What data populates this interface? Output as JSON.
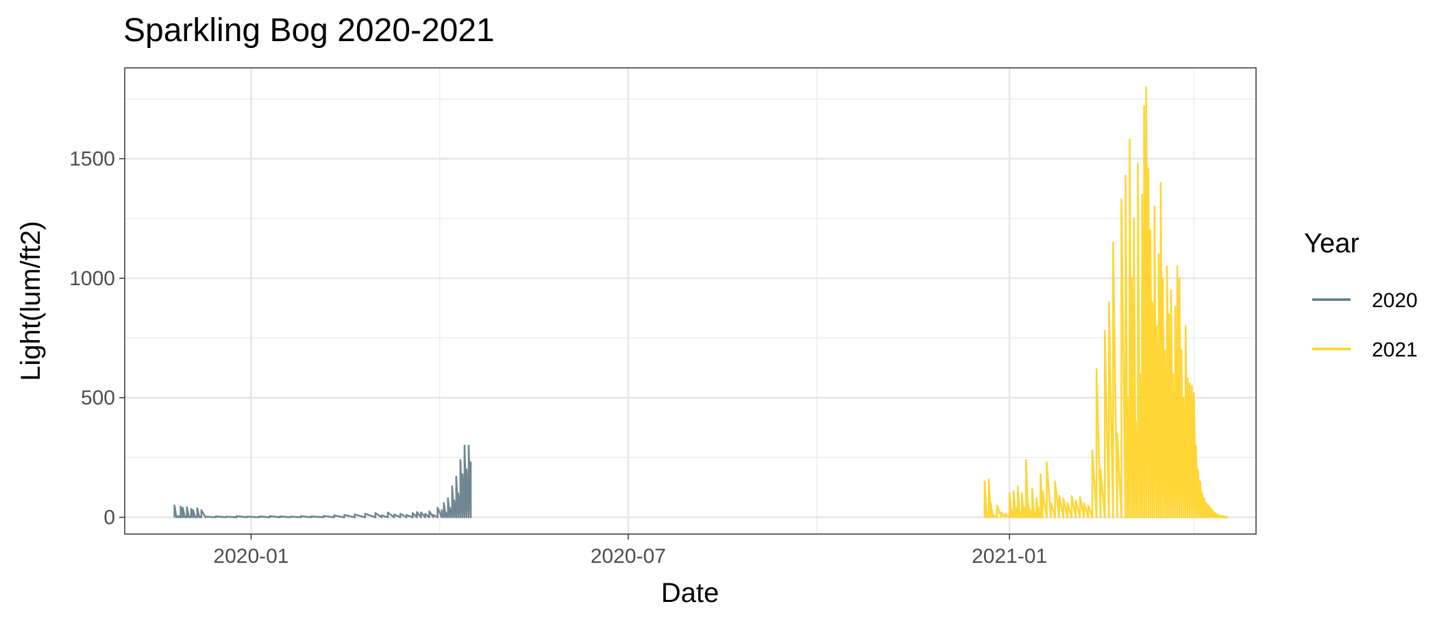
{
  "chart_data": {
    "type": "line",
    "title": "Sparkling Bog 2020-2021",
    "xlabel": "Date",
    "ylabel": "Light(lum/ft2)",
    "x_type": "date",
    "xlim": [
      "2019-11-01",
      "2021-04-30"
    ],
    "ylim": [
      -70,
      1880
    ],
    "x_ticks": [
      {
        "date": "2020-01-01",
        "label": "2020-01"
      },
      {
        "date": "2020-07-01",
        "label": "2020-07"
      },
      {
        "date": "2021-01-01",
        "label": "2021-01"
      }
    ],
    "y_ticks": [
      0,
      500,
      1000,
      1500
    ],
    "grid": true,
    "legend": {
      "title": "Year",
      "placement": "right"
    },
    "series": [
      {
        "name": "2020",
        "color": "#5f7a87",
        "x": [
          "2019-11-25",
          "2019-11-26",
          "2019-11-27",
          "2019-11-28",
          "2019-11-29",
          "2019-11-30",
          "2019-12-01",
          "2019-12-02",
          "2019-12-03",
          "2019-12-04",
          "2019-12-05",
          "2019-12-06",
          "2019-12-07",
          "2019-12-08",
          "2019-12-10",
          "2019-12-15",
          "2019-12-20",
          "2019-12-25",
          "2019-12-30",
          "2020-01-05",
          "2020-01-10",
          "2020-01-15",
          "2020-01-20",
          "2020-01-25",
          "2020-01-30",
          "2020-02-05",
          "2020-02-10",
          "2020-02-15",
          "2020-02-20",
          "2020-02-25",
          "2020-03-01",
          "2020-03-04",
          "2020-03-07",
          "2020-03-10",
          "2020-03-13",
          "2020-03-16",
          "2020-03-19",
          "2020-03-21",
          "2020-03-23",
          "2020-03-25",
          "2020-03-27",
          "2020-03-29",
          "2020-03-31",
          "2020-04-02",
          "2020-04-03",
          "2020-04-04",
          "2020-04-05",
          "2020-04-06",
          "2020-04-07",
          "2020-04-08",
          "2020-04-09",
          "2020-04-10",
          "2020-04-11",
          "2020-04-12",
          "2020-04-13",
          "2020-04-14",
          "2020-04-15",
          "2020-04-16"
        ],
        "values": [
          50,
          5,
          5,
          45,
          40,
          5,
          42,
          5,
          35,
          30,
          5,
          38,
          5,
          30,
          3,
          4,
          3,
          5,
          3,
          4,
          5,
          4,
          3,
          5,
          4,
          6,
          8,
          10,
          12,
          15,
          18,
          8,
          20,
          12,
          15,
          10,
          18,
          22,
          20,
          15,
          25,
          10,
          40,
          30,
          60,
          20,
          80,
          40,
          130,
          70,
          170,
          100,
          240,
          180,
          300,
          200,
          300,
          230
        ]
      },
      {
        "name": "2021",
        "color": "#ffd21f",
        "x": [
          "2020-12-20",
          "2020-12-21",
          "2020-12-22",
          "2020-12-23",
          "2020-12-24",
          "2020-12-26",
          "2020-12-28",
          "2020-12-30",
          "2021-01-01",
          "2021-01-02",
          "2021-01-03",
          "2021-01-04",
          "2021-01-05",
          "2021-01-06",
          "2021-01-07",
          "2021-01-08",
          "2021-01-09",
          "2021-01-10",
          "2021-01-11",
          "2021-01-12",
          "2021-01-13",
          "2021-01-14",
          "2021-01-15",
          "2021-01-16",
          "2021-01-17",
          "2021-01-19",
          "2021-01-21",
          "2021-01-23",
          "2021-01-25",
          "2021-01-27",
          "2021-01-29",
          "2021-01-31",
          "2021-02-02",
          "2021-02-04",
          "2021-02-06",
          "2021-02-08",
          "2021-02-10",
          "2021-02-12",
          "2021-02-14",
          "2021-02-16",
          "2021-02-18",
          "2021-02-20",
          "2021-02-22",
          "2021-02-24",
          "2021-02-26",
          "2021-02-27",
          "2021-02-28",
          "2021-03-01",
          "2021-03-02",
          "2021-03-03",
          "2021-03-04",
          "2021-03-05",
          "2021-03-06",
          "2021-03-07",
          "2021-03-08",
          "2021-03-09",
          "2021-03-10",
          "2021-03-11",
          "2021-03-12",
          "2021-03-13",
          "2021-03-14",
          "2021-03-15",
          "2021-03-16",
          "2021-03-17",
          "2021-03-18",
          "2021-03-19",
          "2021-03-20",
          "2021-03-21",
          "2021-03-22",
          "2021-03-23",
          "2021-03-24",
          "2021-03-25",
          "2021-03-26",
          "2021-03-27",
          "2021-03-28",
          "2021-03-29",
          "2021-03-30",
          "2021-03-31",
          "2021-04-01",
          "2021-04-02",
          "2021-04-03",
          "2021-04-04",
          "2021-04-05",
          "2021-04-06",
          "2021-04-07",
          "2021-04-08",
          "2021-04-09",
          "2021-04-10",
          "2021-04-11",
          "2021-04-12",
          "2021-04-13",
          "2021-04-14",
          "2021-04-15",
          "2021-04-16"
        ],
        "values": [
          150,
          20,
          160,
          60,
          10,
          50,
          20,
          15,
          100,
          30,
          110,
          40,
          130,
          20,
          100,
          45,
          240,
          60,
          30,
          120,
          20,
          80,
          40,
          180,
          110,
          230,
          60,
          150,
          90,
          80,
          60,
          90,
          70,
          85,
          60,
          50,
          280,
          620,
          200,
          780,
          900,
          1150,
          350,
          1330,
          1430,
          500,
          1580,
          1000,
          1250,
          400,
          1480,
          600,
          1350,
          1720,
          1800,
          1460,
          1200,
          900,
          1300,
          800,
          1100,
          1400,
          1000,
          700,
          1050,
          850,
          950,
          600,
          880,
          1050,
          1000,
          700,
          500,
          800,
          580,
          560,
          550,
          520,
          300,
          200,
          150,
          100,
          80,
          60,
          50,
          40,
          30,
          20,
          15,
          10,
          5,
          5,
          3,
          2
        ]
      }
    ]
  }
}
